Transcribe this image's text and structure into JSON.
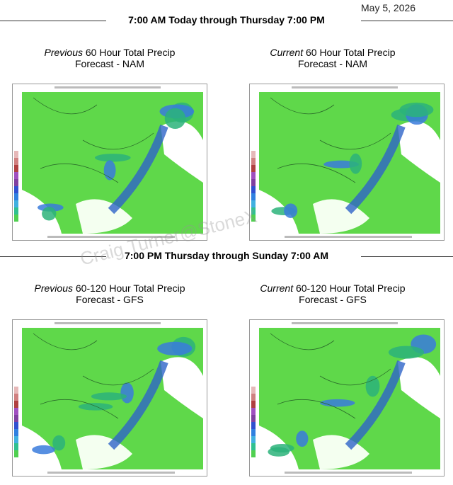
{
  "date": "May 5, 2026",
  "sections": [
    {
      "heading": "7:00 AM Today through Thursday 7:00 PM",
      "panels": [
        {
          "title_em": "Previous",
          "title_rest": "60 Hour Total Precip",
          "title_line2": "Forecast - NAM"
        },
        {
          "title_em": "Current",
          "title_rest": "60 Hour Total Precip",
          "title_line2": "Forecast - NAM"
        }
      ]
    },
    {
      "heading": "7:00 PM Thursday through Sunday 7:00 AM",
      "panels": [
        {
          "title_em": "Previous",
          "title_rest": "60-120 Hour Total Precip",
          "title_line2": "Forecast - GFS"
        },
        {
          "title_em": "Current",
          "title_rest": "60-120 Hour Total Precip",
          "title_line2": "Forecast - GFS"
        }
      ]
    }
  ],
  "watermark": "Craig Turner@StoneX"
}
